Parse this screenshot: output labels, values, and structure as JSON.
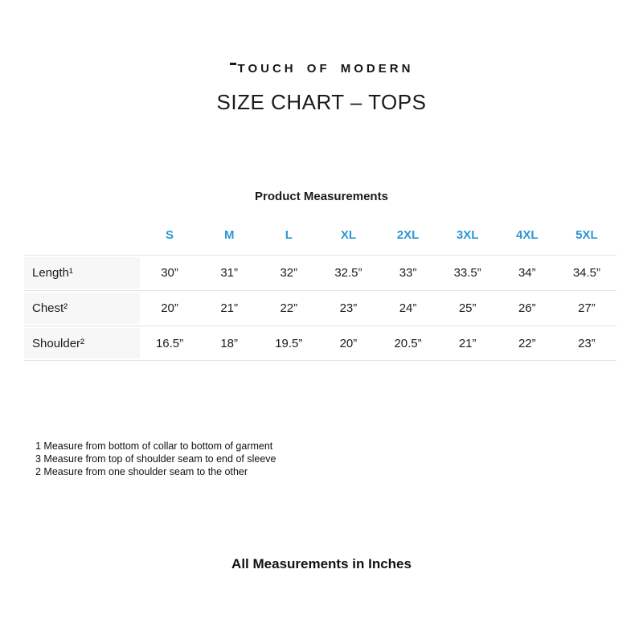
{
  "brand": {
    "logo_text": "TOUCH OF MODERN"
  },
  "title": "SIZE CHART – TOPS",
  "table": {
    "caption": "Product Measurements",
    "size_headers": [
      "S",
      "M",
      "L",
      "XL",
      "2XL",
      "3XL",
      "4XL",
      "5XL"
    ],
    "rows": [
      {
        "label": "Length¹",
        "values": [
          "30”",
          "31”",
          "32”",
          "32.5”",
          "33”",
          "33.5”",
          "34”",
          "34.5”"
        ]
      },
      {
        "label": "Chest²",
        "values": [
          "20”",
          "21”",
          "22”",
          "23”",
          "24”",
          "25”",
          "26”",
          "27”"
        ]
      },
      {
        "label": "Shoulder²",
        "values": [
          "16.5”",
          "18”",
          "19.5”",
          "20”",
          "20.5”",
          "21”",
          "22”",
          "23”"
        ]
      }
    ]
  },
  "footnotes": [
    "1 Measure from bottom of collar to bottom of garment",
    "3 Measure from top of shoulder seam to end of sleeve",
    "2 Measure from one shoulder seam to the other"
  ],
  "footer_note": "All Measurements in Inches",
  "colors": {
    "accent_blue": "#2f96d3"
  }
}
